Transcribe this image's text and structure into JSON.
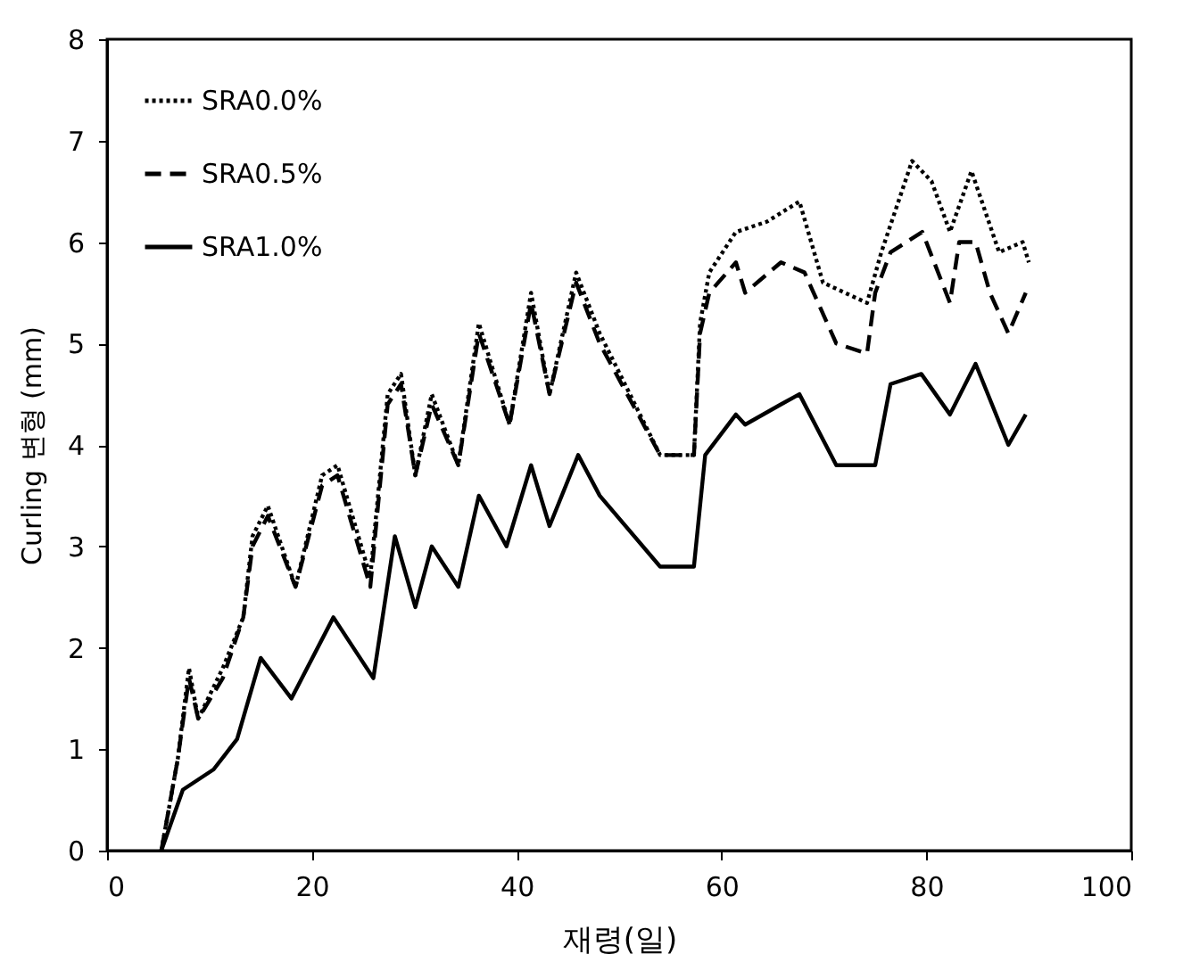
{
  "chart_data": {
    "type": "line",
    "xlabel": "재령(일)",
    "ylabel": "Curling 변형 (mm)",
    "xlim": [
      0,
      100
    ],
    "xticks": [
      0,
      20,
      40,
      60,
      80,
      100
    ],
    "ylim": [
      0,
      8
    ],
    "yticks": [
      0,
      1,
      2,
      3,
      4,
      5,
      6,
      7,
      8
    ],
    "grid": false,
    "legend": "top left",
    "marker": "none",
    "series": [
      {
        "name": "SRA0.0%",
        "color": "#000000",
        "line_style": "dotted",
        "x": [
          5.3,
          6.9,
          8,
          8.9,
          11.3,
          13.3,
          14.2,
          15.7,
          18.4,
          21,
          22.5,
          25.7,
          27.4,
          28.7,
          30.1,
          31.7,
          34.3,
          36.3,
          39.3,
          41.4,
          43.2,
          45.8,
          48.1,
          54,
          57.3,
          57.9,
          58.8,
          61.4,
          64.4,
          67.6,
          69.9,
          74.2,
          75.6,
          78.6,
          80.5,
          82.3,
          84.4,
          87.1,
          89.4,
          90
        ],
        "values": [
          0,
          0.9,
          1.8,
          1.3,
          1.8,
          2.3,
          3.1,
          3.4,
          2.6,
          3.7,
          3.8,
          2.7,
          4.5,
          4.7,
          3.7,
          4.5,
          3.8,
          5.2,
          4.2,
          5.5,
          4.5,
          5.7,
          5.1,
          3.9,
          3.9,
          5.2,
          5.7,
          6.1,
          6.2,
          6.4,
          5.6,
          5.4,
          5.9,
          6.8,
          6.6,
          6.1,
          6.7,
          5.9,
          6.0,
          5.8
        ]
      },
      {
        "name": "SRA0.5%",
        "color": "#000000",
        "line_style": "dashed",
        "x": [
          5.3,
          6.9,
          8,
          8.9,
          11.3,
          13.3,
          14.2,
          15.7,
          18.4,
          21,
          22.5,
          25.7,
          27.4,
          28.7,
          30.1,
          31.7,
          34.3,
          36.3,
          39.3,
          41.4,
          43.2,
          45.8,
          48.1,
          54,
          57.3,
          57.9,
          58.8,
          61.4,
          62.3,
          65.8,
          68.1,
          71.2,
          74.2,
          75,
          76.5,
          79.6,
          82.3,
          83.2,
          84.8,
          86.2,
          88,
          89.7
        ],
        "values": [
          0,
          0.9,
          1.7,
          1.3,
          1.7,
          2.3,
          3.0,
          3.3,
          2.6,
          3.6,
          3.7,
          2.6,
          4.4,
          4.6,
          3.7,
          4.4,
          3.8,
          5.1,
          4.2,
          5.4,
          4.5,
          5.6,
          5.0,
          3.9,
          3.9,
          5.1,
          5.5,
          5.8,
          5.5,
          5.8,
          5.7,
          5.0,
          4.9,
          5.5,
          5.9,
          6.1,
          5.4,
          6.0,
          6.0,
          5.5,
          5.1,
          5.5
        ]
      },
      {
        "name": "SRA1.0%",
        "color": "#000000",
        "line_style": "solid",
        "x": [
          5.3,
          7.4,
          10.4,
          12.7,
          15,
          18,
          22.1,
          26,
          28.1,
          30.1,
          31.7,
          34.3,
          36.3,
          39,
          41.4,
          43.2,
          46,
          48.1,
          54,
          57.3,
          58.4,
          61.4,
          62.3,
          65.8,
          67.6,
          71.2,
          75,
          76.5,
          79.5,
          82.3,
          84.8,
          88,
          89.7
        ],
        "values": [
          0,
          0.6,
          0.8,
          1.1,
          1.9,
          1.5,
          2.3,
          1.7,
          3.1,
          2.4,
          3.0,
          2.6,
          3.5,
          3.0,
          3.8,
          3.2,
          3.9,
          3.5,
          2.8,
          2.8,
          3.9,
          4.3,
          4.2,
          4.4,
          4.5,
          3.8,
          3.8,
          4.6,
          4.7,
          4.3,
          4.8,
          4.0,
          4.3
        ]
      }
    ]
  }
}
